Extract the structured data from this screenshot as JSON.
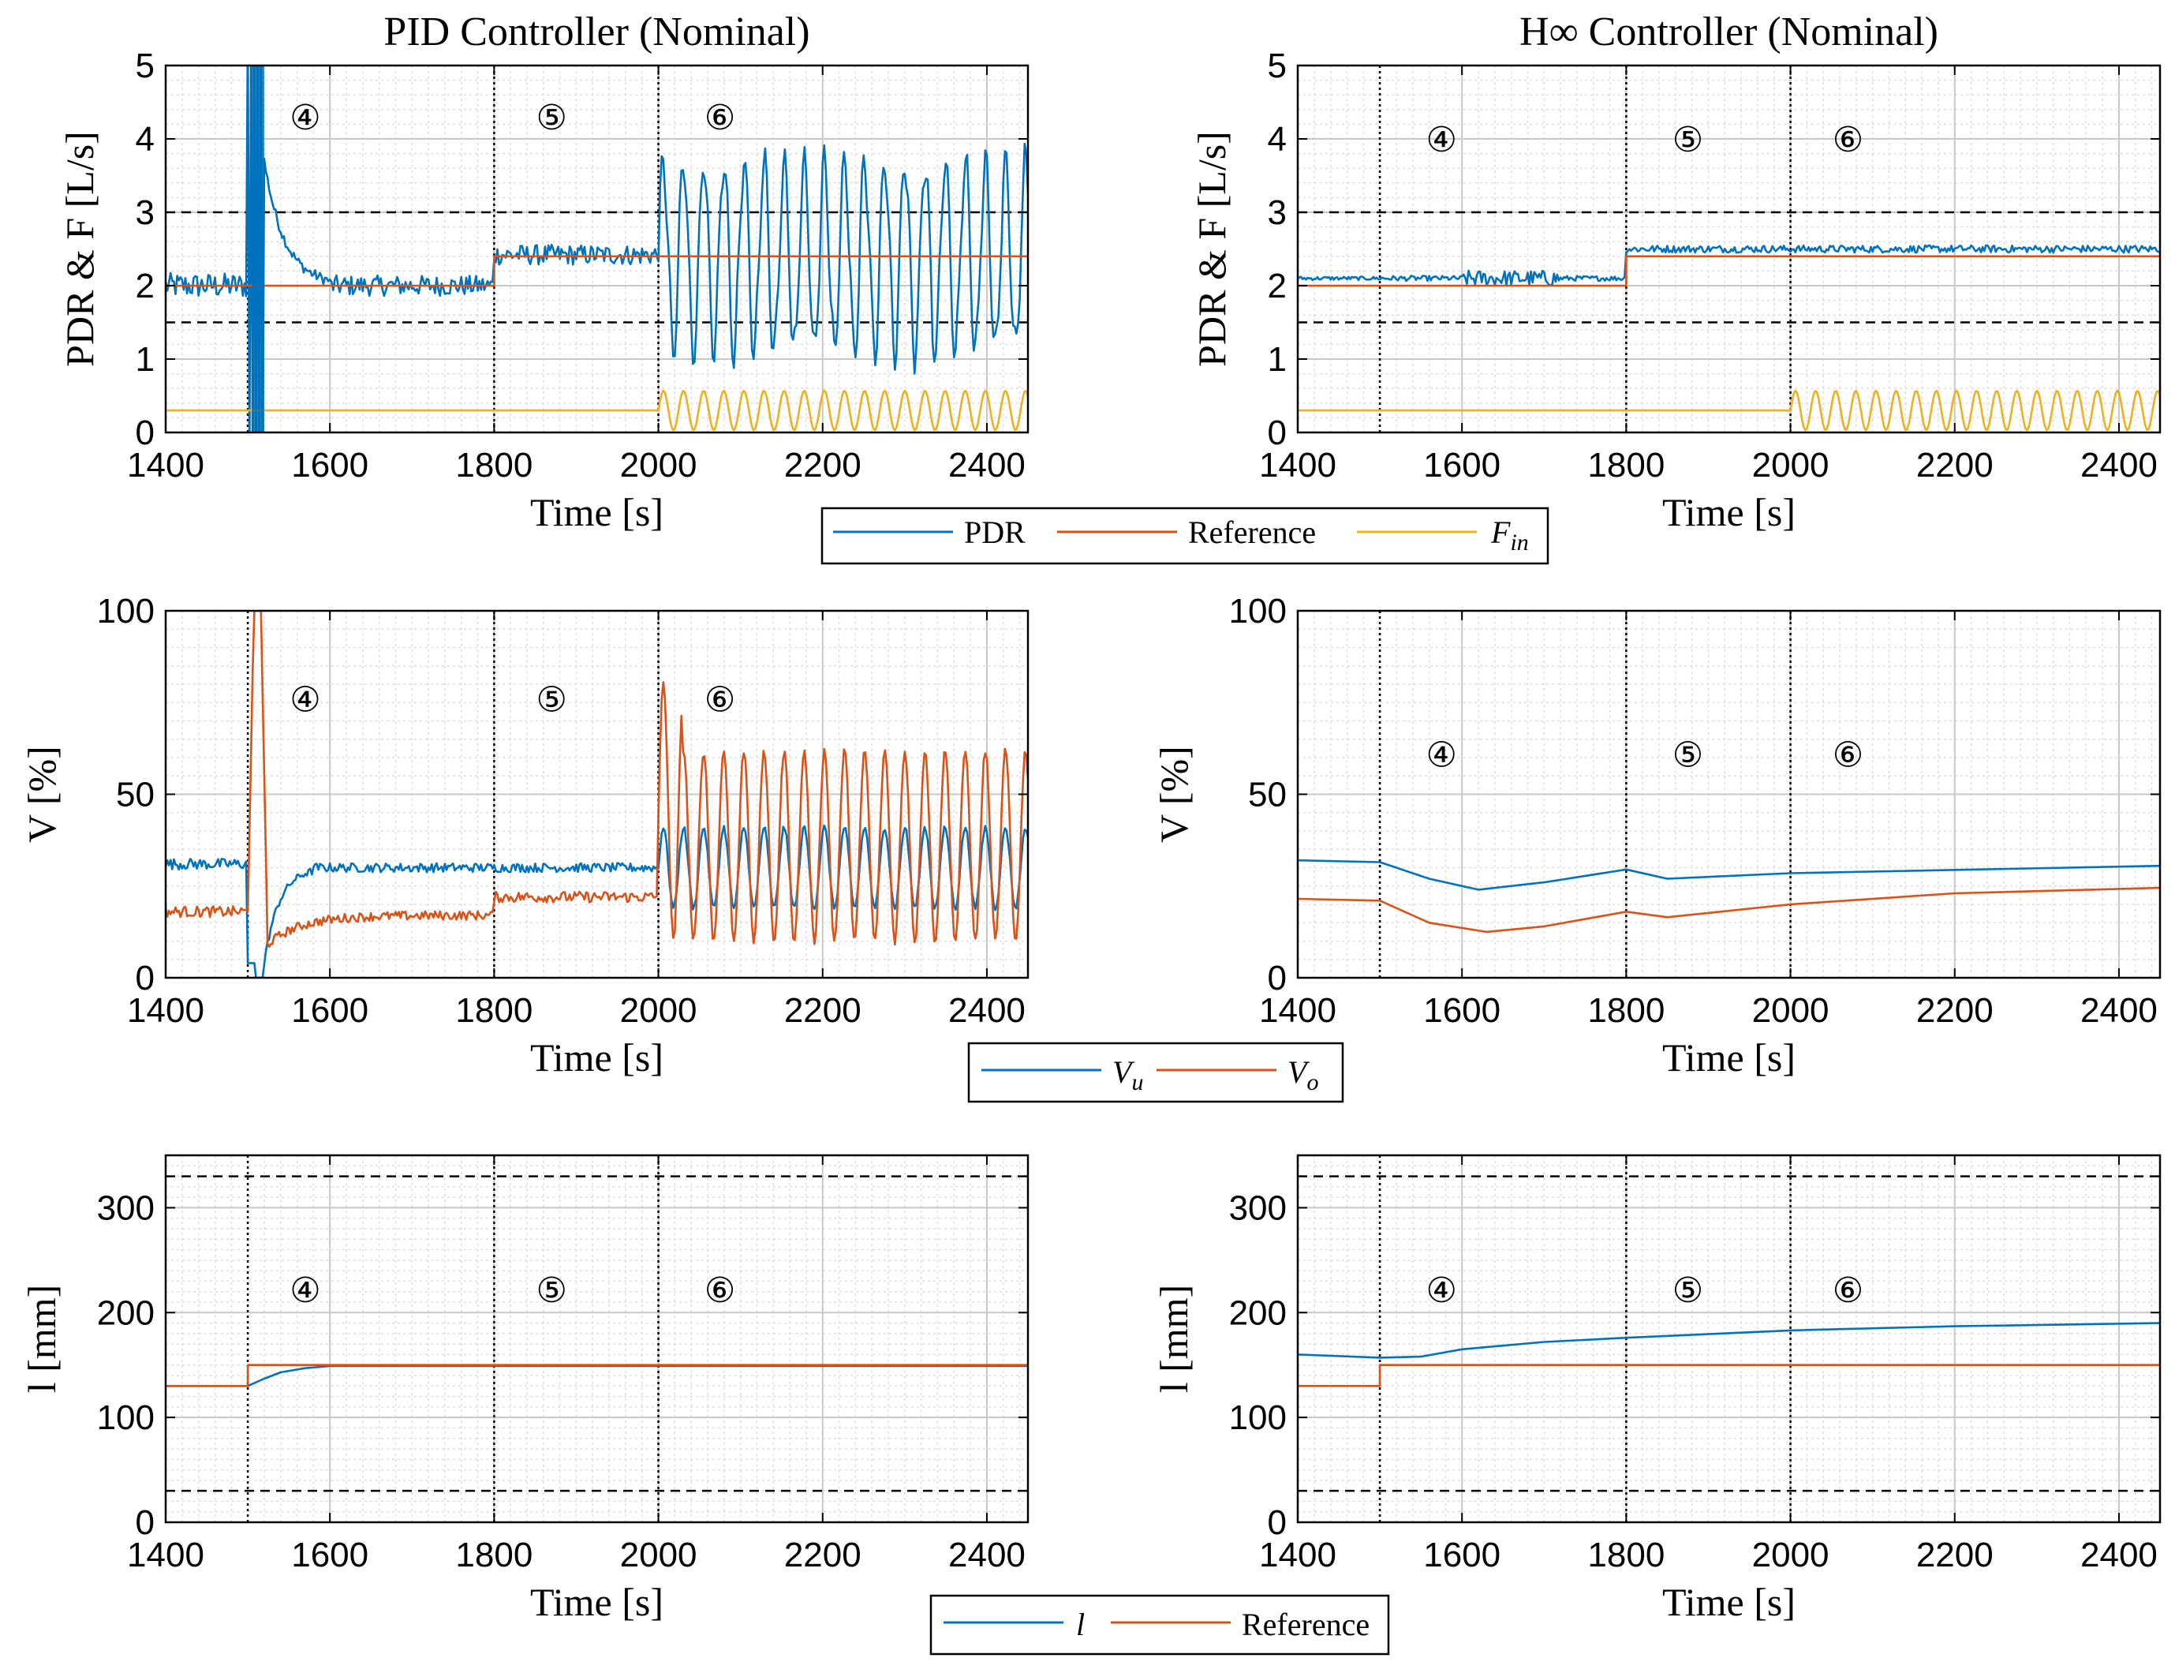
{
  "figure": {
    "legend_top": [
      "PDR",
      "Reference",
      "F_in"
    ],
    "legend_mid": [
      "V_u",
      "V_o"
    ],
    "legend_bot": [
      "l",
      "Reference"
    ]
  },
  "chart_data": [
    {
      "id": "pdr-pid",
      "type": "line",
      "title": "PID Controller (Nominal)",
      "xlabel": "Time [s]",
      "ylabel": "PDR & F [L/s]",
      "xlim": [
        1400,
        2450
      ],
      "ylim": [
        0,
        5
      ],
      "xticks": [
        1400,
        1600,
        1800,
        2000,
        2200,
        2400
      ],
      "yticks": [
        0,
        1,
        2,
        3,
        4,
        5
      ],
      "constraint_lines": [
        1.5,
        3
      ],
      "phase_lines": [
        1500,
        1800,
        2000
      ],
      "regions": [
        {
          "label": "④",
          "x": 1570
        },
        {
          "label": "⑤",
          "x": 1870
        },
        {
          "label": "⑥",
          "x": 2075
        }
      ],
      "region_y": 4.3,
      "series": [
        {
          "name": "PDR",
          "color": "#0072BD",
          "kind": "pdr-pid"
        },
        {
          "name": "Reference",
          "color": "#D95319",
          "points": [
            [
              1400,
              2.0
            ],
            [
              1800,
              2.0
            ],
            [
              1800,
              2.4
            ],
            [
              2450,
              2.4
            ]
          ]
        },
        {
          "name": "F_in",
          "color": "#EDB120",
          "kind": "fin"
        }
      ]
    },
    {
      "id": "pdr-hinf",
      "type": "line",
      "title": "H∞ Controller (Nominal)",
      "xlabel": "Time [s]",
      "ylabel": "PDR & F [L/s]",
      "xlim": [
        1400,
        2450
      ],
      "ylim": [
        0,
        5
      ],
      "xticks": [
        1400,
        1600,
        1800,
        2000,
        2200,
        2400
      ],
      "yticks": [
        0,
        1,
        2,
        3,
        4,
        5
      ],
      "constraint_lines": [
        1.5,
        3
      ],
      "phase_lines": [
        1500,
        1800,
        2000
      ],
      "regions": [
        {
          "label": "④",
          "x": 1575
        },
        {
          "label": "⑤",
          "x": 1875
        },
        {
          "label": "⑥",
          "x": 2070
        }
      ],
      "region_y": 4.0,
      "series": [
        {
          "name": "PDR",
          "color": "#0072BD",
          "kind": "pdr-hinf"
        },
        {
          "name": "Reference",
          "color": "#D95319",
          "points": [
            [
              1400,
              2.0
            ],
            [
              1800,
              2.0
            ],
            [
              1800,
              2.4
            ],
            [
              2450,
              2.4
            ]
          ]
        },
        {
          "name": "F_in",
          "color": "#EDB120",
          "kind": "fin"
        }
      ]
    },
    {
      "id": "v-pid",
      "type": "line",
      "title": "",
      "xlabel": "Time [s]",
      "ylabel": "V [%]",
      "xlim": [
        1400,
        2450
      ],
      "ylim": [
        0,
        100
      ],
      "xticks": [
        1400,
        1600,
        1800,
        2000,
        2200,
        2400
      ],
      "yticks": [
        0,
        50,
        100
      ],
      "constraint_lines": [],
      "phase_lines": [
        1500,
        1800,
        2000
      ],
      "regions": [
        {
          "label": "④",
          "x": 1570
        },
        {
          "label": "⑤",
          "x": 1870
        },
        {
          "label": "⑥",
          "x": 2075
        }
      ],
      "region_y": 76,
      "series": [
        {
          "name": "V_u",
          "color": "#0072BD",
          "kind": "vu-pid"
        },
        {
          "name": "V_o",
          "color": "#D95319",
          "kind": "vo-pid"
        }
      ]
    },
    {
      "id": "v-hinf",
      "type": "line",
      "title": "",
      "xlabel": "Time [s]",
      "ylabel": "V [%]",
      "xlim": [
        1400,
        2450
      ],
      "ylim": [
        0,
        100
      ],
      "xticks": [
        1400,
        1600,
        1800,
        2000,
        2200,
        2400
      ],
      "yticks": [
        0,
        50,
        100
      ],
      "constraint_lines": [],
      "phase_lines": [
        1500,
        1800,
        2000
      ],
      "regions": [
        {
          "label": "④",
          "x": 1575
        },
        {
          "label": "⑤",
          "x": 1875
        },
        {
          "label": "⑥",
          "x": 2070
        }
      ],
      "region_y": 61,
      "series": [
        {
          "name": "V_u",
          "color": "#0072BD",
          "points": [
            [
              1400,
              32
            ],
            [
              1500,
              31.5
            ],
            [
              1560,
              27
            ],
            [
              1620,
              24
            ],
            [
              1700,
              26
            ],
            [
              1800,
              29.5
            ],
            [
              1850,
              27
            ],
            [
              2000,
              28.5
            ],
            [
              2450,
              30.5
            ]
          ]
        },
        {
          "name": "V_o",
          "color": "#D95319",
          "points": [
            [
              1400,
              21.5
            ],
            [
              1500,
              21
            ],
            [
              1560,
              15
            ],
            [
              1630,
              12.5
            ],
            [
              1700,
              14
            ],
            [
              1800,
              18
            ],
            [
              1850,
              16.5
            ],
            [
              2000,
              20
            ],
            [
              2200,
              23
            ],
            [
              2450,
              24.5
            ]
          ]
        }
      ]
    },
    {
      "id": "l-pid",
      "type": "line",
      "title": "",
      "xlabel": "Time [s]",
      "ylabel": "l [mm]",
      "xlim": [
        1400,
        2450
      ],
      "ylim": [
        0,
        350
      ],
      "xticks": [
        1400,
        1600,
        1800,
        2000,
        2200,
        2400
      ],
      "yticks": [
        0,
        100,
        200,
        300
      ],
      "constraint_lines": [
        30,
        330
      ],
      "phase_lines": [
        1500,
        1800,
        2000
      ],
      "regions": [
        {
          "label": "④",
          "x": 1570
        },
        {
          "label": "⑤",
          "x": 1870
        },
        {
          "label": "⑥",
          "x": 2075
        }
      ],
      "region_y": 222,
      "series": [
        {
          "name": "l",
          "color": "#0072BD",
          "points": [
            [
              1400,
              130
            ],
            [
              1500,
              130
            ],
            [
              1520,
              137
            ],
            [
              1540,
              143
            ],
            [
              1570,
              147
            ],
            [
              1600,
              149
            ],
            [
              2450,
              149
            ]
          ]
        },
        {
          "name": "Reference",
          "color": "#D95319",
          "points": [
            [
              1400,
              130
            ],
            [
              1500,
              130
            ],
            [
              1500,
              150
            ],
            [
              2450,
              150
            ]
          ]
        }
      ]
    },
    {
      "id": "l-hinf",
      "type": "line",
      "title": "",
      "xlabel": "Time [s]",
      "ylabel": "l [mm]",
      "xlim": [
        1400,
        2450
      ],
      "ylim": [
        0,
        350
      ],
      "xticks": [
        1400,
        1600,
        1800,
        2000,
        2200,
        2400
      ],
      "yticks": [
        0,
        100,
        200,
        300
      ],
      "constraint_lines": [
        30,
        330
      ],
      "phase_lines": [
        1500,
        1800,
        2000
      ],
      "regions": [
        {
          "label": "④",
          "x": 1575
        },
        {
          "label": "⑤",
          "x": 1875
        },
        {
          "label": "⑥",
          "x": 2070
        }
      ],
      "region_y": 222,
      "series": [
        {
          "name": "l",
          "color": "#0072BD",
          "points": [
            [
              1400,
              160
            ],
            [
              1500,
              157
            ],
            [
              1550,
              158
            ],
            [
              1600,
              165
            ],
            [
              1700,
              172
            ],
            [
              1800,
              176
            ],
            [
              2000,
              183
            ],
            [
              2200,
              187
            ],
            [
              2450,
              190
            ]
          ]
        },
        {
          "name": "Reference",
          "color": "#D95319",
          "points": [
            [
              1400,
              130
            ],
            [
              1500,
              130
            ],
            [
              1500,
              150
            ],
            [
              2450,
              150
            ]
          ]
        }
      ]
    }
  ]
}
